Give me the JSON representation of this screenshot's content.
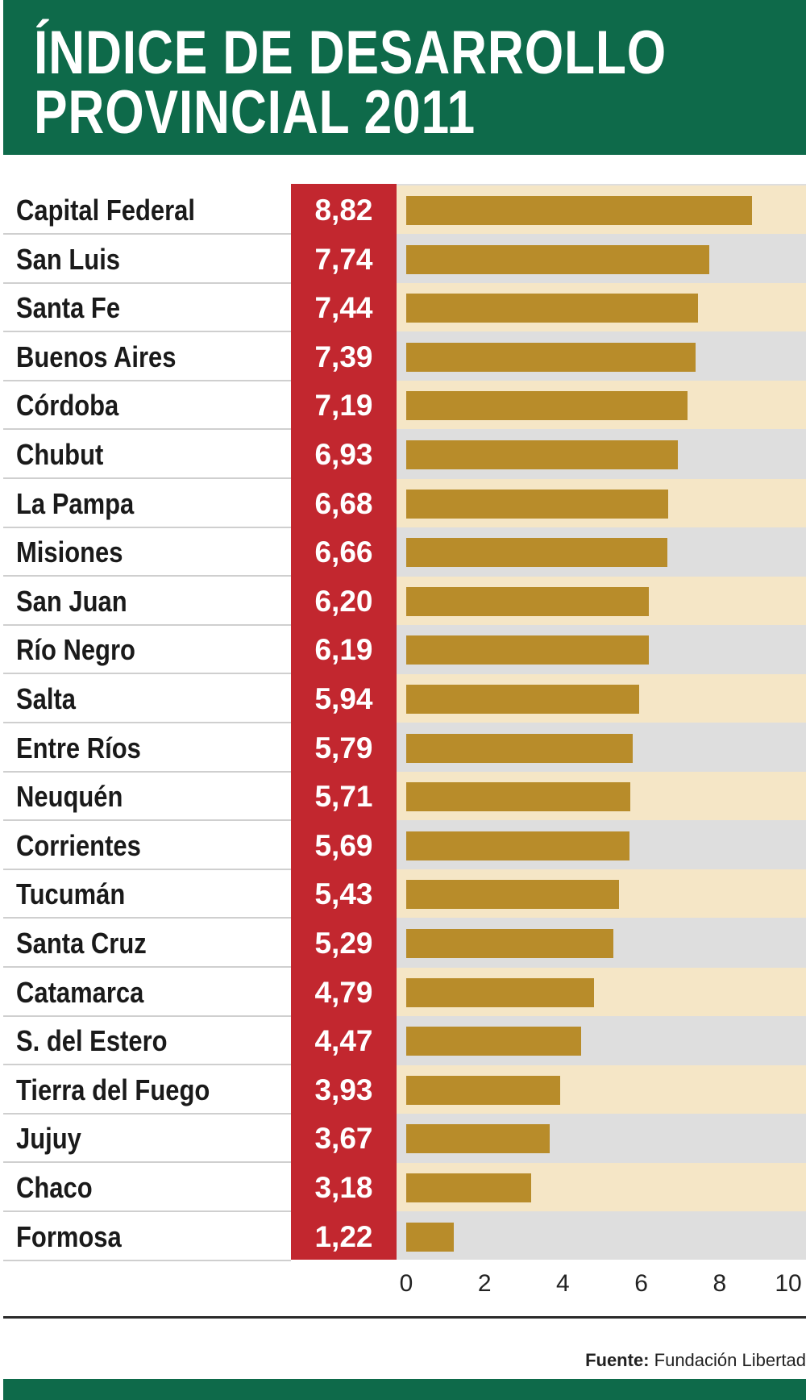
{
  "header": {
    "title_line1": "ÍNDICE DE DESARROLLO",
    "title_line2": "PROVINCIAL 2011"
  },
  "source": {
    "label": "Fuente:",
    "text": "Fundación Libertad"
  },
  "chart_data": {
    "type": "bar",
    "orientation": "horizontal",
    "title": "ÍNDICE DE DESARROLLO PROVINCIAL 2011",
    "xlabel": "",
    "ylabel": "",
    "xlim": [
      0,
      10
    ],
    "x_ticks": [
      0,
      2,
      4,
      6,
      8,
      10
    ],
    "categories": [
      "Capital Federal",
      "San Luis",
      "Santa Fe",
      "Buenos Aires",
      "Córdoba",
      "Chubut",
      "La Pampa",
      "Misiones",
      "San Juan",
      "Río Negro",
      "Salta",
      "Entre Ríos",
      "Neuquén",
      "Corrientes",
      "Tucumán",
      "Santa Cruz",
      "Catamarca",
      "S. del Estero",
      "Tierra del Fuego",
      "Jujuy",
      "Chaco",
      "Formosa"
    ],
    "values": [
      8.82,
      7.74,
      7.44,
      7.39,
      7.19,
      6.93,
      6.68,
      6.66,
      6.2,
      6.19,
      5.94,
      5.79,
      5.71,
      5.69,
      5.43,
      5.29,
      4.79,
      4.47,
      3.93,
      3.67,
      3.18,
      1.22
    ],
    "value_labels": [
      "8,82",
      "7,74",
      "7,44",
      "7,39",
      "7,19",
      "6,93",
      "6,68",
      "6,66",
      "6,20",
      "6,19",
      "5,94",
      "5,79",
      "5,71",
      "5,69",
      "5,43",
      "5,29",
      "4,79",
      "4,47",
      "3,93",
      "3,67",
      "3,18",
      "1,22"
    ],
    "grid": false,
    "colors": {
      "bar": "#b88c2a",
      "value_column": "#c2272f",
      "header": "#0e6a4a",
      "band": "#f5e6c6",
      "plot_background": "#dedede"
    }
  }
}
